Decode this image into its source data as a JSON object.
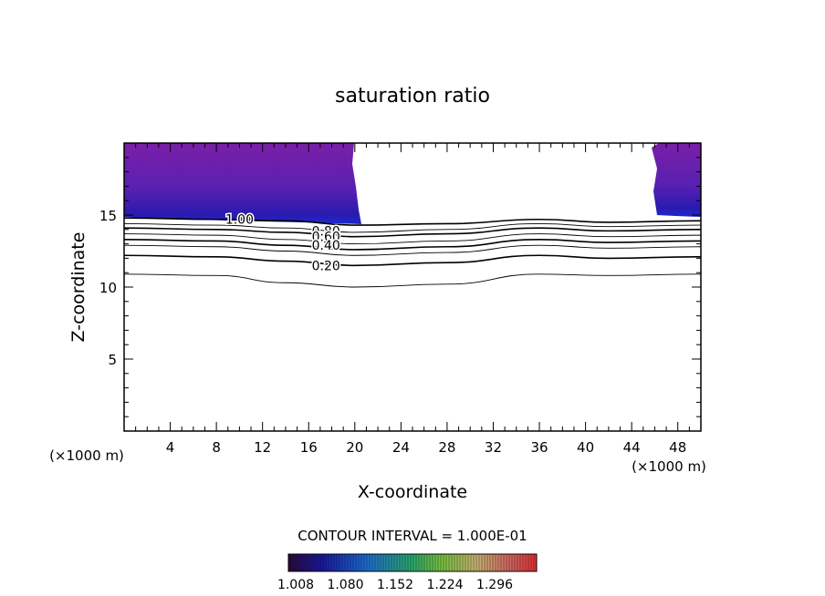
{
  "chart_data": {
    "type": "contour",
    "title": "saturation ratio",
    "xlabel": "X-coordinate",
    "ylabel": "Z-coordinate",
    "x_unit": "(×1000 m)",
    "x_unit_right": "(×1000 m)",
    "xlim": [
      0,
      50
    ],
    "ylim": [
      0,
      20
    ],
    "x_ticks": [
      4,
      8,
      12,
      16,
      20,
      24,
      28,
      32,
      36,
      40,
      44,
      48
    ],
    "y_ticks": [
      5,
      10,
      15
    ],
    "contour_labels": [
      {
        "text": "1.00",
        "x": 10,
        "z": 14.7
      },
      {
        "text": "0.80",
        "x": 17.5,
        "z": 13.9
      },
      {
        "text": "0.60",
        "x": 17.5,
        "z": 13.5
      },
      {
        "text": "0.40",
        "x": 17.5,
        "z": 12.9
      },
      {
        "text": "0.20",
        "x": 17.5,
        "z": 11.5
      }
    ],
    "contour_lines": [
      {
        "x": [
          0,
          8,
          14,
          20,
          28,
          36,
          42,
          50
        ],
        "z": [
          14.8,
          14.7,
          14.6,
          14.3,
          14.4,
          14.7,
          14.5,
          14.6
        ]
      },
      {
        "x": [
          0,
          8,
          14,
          20,
          28,
          36,
          42,
          50
        ],
        "z": [
          14.4,
          14.3,
          14.1,
          13.8,
          14.0,
          14.4,
          14.2,
          14.3
        ]
      },
      {
        "x": [
          0,
          8,
          14,
          20,
          28,
          36,
          42,
          50
        ],
        "z": [
          14.1,
          14.0,
          13.8,
          13.5,
          13.7,
          14.1,
          13.9,
          14.0
        ]
      },
      {
        "x": [
          0,
          8,
          14,
          20,
          28,
          36,
          42,
          50
        ],
        "z": [
          13.7,
          13.6,
          13.3,
          13.0,
          13.2,
          13.7,
          13.5,
          13.6
        ]
      },
      {
        "x": [
          0,
          8,
          14,
          20,
          28,
          36,
          42,
          50
        ],
        "z": [
          13.3,
          13.2,
          12.9,
          12.6,
          12.8,
          13.3,
          13.1,
          13.2
        ]
      },
      {
        "x": [
          0,
          8,
          14,
          20,
          28,
          36,
          42,
          50
        ],
        "z": [
          12.9,
          12.8,
          12.5,
          12.2,
          12.4,
          12.9,
          12.7,
          12.8
        ]
      },
      {
        "x": [
          0,
          8,
          14,
          20,
          28,
          36,
          42,
          50
        ],
        "z": [
          12.2,
          12.1,
          11.8,
          11.5,
          11.7,
          12.2,
          12.0,
          12.1
        ]
      },
      {
        "x": [
          0,
          8,
          14,
          20,
          28,
          36,
          42,
          50
        ],
        "z": [
          10.9,
          10.8,
          10.3,
          10.0,
          10.2,
          10.9,
          10.8,
          10.9
        ]
      }
    ],
    "colorbar": {
      "ticks": [
        "1.008",
        "1.080",
        "1.152",
        "1.224",
        "1.296"
      ],
      "interval_text": "CONTOUR INTERVAL = 1.000E-01",
      "colors": [
        "#2a0a3a",
        "#1a1aa0",
        "#1e6fd0",
        "#2aa86a",
        "#7ac040",
        "#c8b070",
        "#d06060",
        "#e03030"
      ]
    }
  }
}
